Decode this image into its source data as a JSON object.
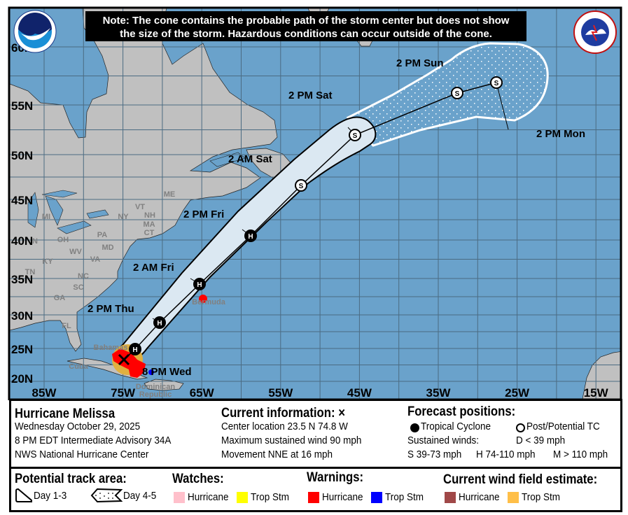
{
  "note": {
    "line1": "Note: The cone contains the probable path of the storm center but does not show",
    "line2": "the size of the storm. Hazardous conditions can occur outside of the cone."
  },
  "logos": {
    "left": "NOAA",
    "right": "NATIONAL WEATHER SERVICE"
  },
  "map": {
    "colors": {
      "ocean": "#6aa2cb",
      "land": "#c0c0c0",
      "cone_day13": "#dbe8f2",
      "grid": "#4b6b82"
    },
    "lat_labels": [
      "60N",
      "55N",
      "50N",
      "45N",
      "40N",
      "35N",
      "30N",
      "25N",
      "20N"
    ],
    "lon_labels": [
      "85W",
      "75W",
      "65W",
      "55W",
      "45W",
      "35W",
      "25W",
      "15W"
    ],
    "states": [
      "MI",
      "OH",
      "PA",
      "NY",
      "VT",
      "NH",
      "ME",
      "MA",
      "CT",
      "WV",
      "VA",
      "KY",
      "TN",
      "NC",
      "SC",
      "GA",
      "FL",
      "N",
      "MD"
    ],
    "places": [
      "Bermuda",
      "Cuba",
      "Bahamas",
      "Dominican",
      "Republic"
    ],
    "forecast_points": [
      {
        "label": "8 PM Wed",
        "marker": "H"
      },
      {
        "label": "2 PM Thu",
        "marker": "H"
      },
      {
        "label": "2 AM Fri",
        "marker": "H"
      },
      {
        "label": "2 PM Fri",
        "marker": "H"
      },
      {
        "label": "2 AM Sat",
        "marker": "S"
      },
      {
        "label": "2 PM Sat",
        "marker": "S"
      },
      {
        "label": "2 PM Sun",
        "marker": "S"
      },
      {
        "label": "2 PM Mon",
        "marker": "S"
      }
    ]
  },
  "info": {
    "storm_name": "Hurricane Melissa",
    "date": "Wednesday October 29, 2025",
    "advisory": "8 PM EDT Intermediate Advisory 34A",
    "center": "NWS National Hurricane Center",
    "current_title": "Current information: ×",
    "location": "Center location 23.5 N 74.8 W",
    "max_wind": "Maximum sustained wind 90 mph",
    "movement": "Movement NNE at 16 mph",
    "forecast_title": "Forecast positions:",
    "tropical_cyclone": "Tropical Cyclone",
    "post_tc": "Post/Potential TC",
    "sustained": "Sustained winds:",
    "d": "D < 39 mph",
    "s": "S 39-73 mph",
    "h": "H 74-110 mph",
    "m": "M > 110 mph"
  },
  "legend": {
    "track_title": "Potential track area:",
    "day13": "Day 1-3",
    "day45": "Day 4-5",
    "watches_title": "Watches:",
    "warnings_title": "Warnings:",
    "wind_title": "Current wind field estimate:",
    "hurricane": "Hurricane",
    "trop_stm": "Trop Stm",
    "colors": {
      "watch_hurricane": "#ffc0cb",
      "watch_trop": "#ffff00",
      "warn_hurricane": "#ff0000",
      "warn_trop": "#0000ff",
      "wind_hurricane": "#a04848",
      "wind_trop": "#ffbf48"
    }
  }
}
